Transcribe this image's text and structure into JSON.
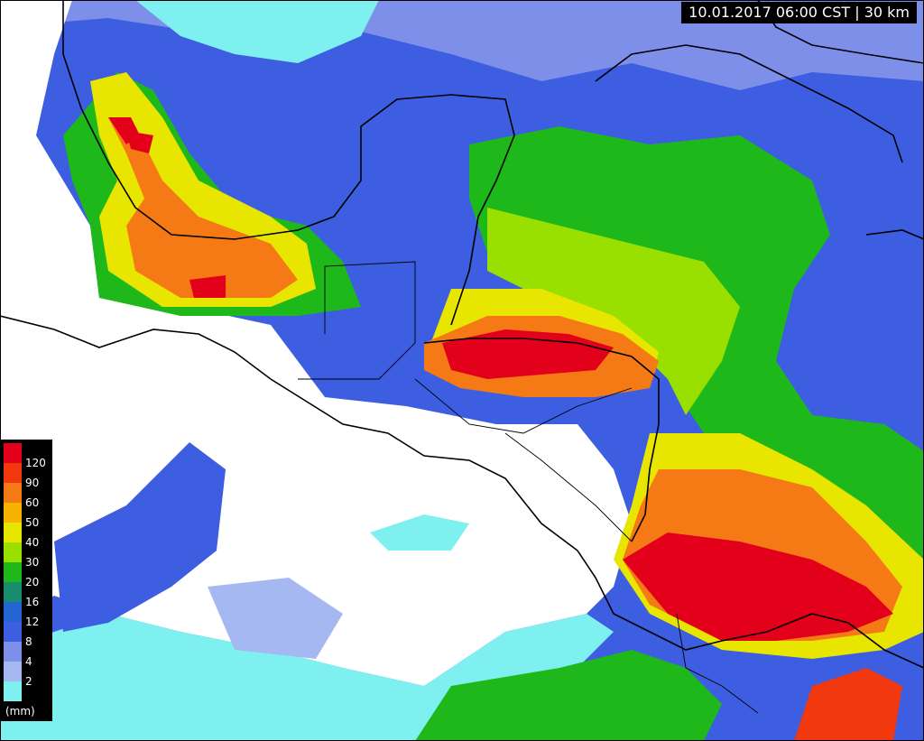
{
  "header": {
    "label": "10.01.2017 06:00 CST | 30 km"
  },
  "legend": {
    "unit": "(mm)",
    "items": [
      {
        "value": "120",
        "color": "#e3001a"
      },
      {
        "value": "90",
        "color": "#f2380f"
      },
      {
        "value": "60",
        "color": "#f57a16"
      },
      {
        "value": "50",
        "color": "#f7b300"
      },
      {
        "value": "40",
        "color": "#e8e600"
      },
      {
        "value": "30",
        "color": "#99e000"
      },
      {
        "value": "20",
        "color": "#1fb81a"
      },
      {
        "value": "16",
        "color": "#1a8c6e"
      },
      {
        "value": "12",
        "color": "#2466d1"
      },
      {
        "value": "8",
        "color": "#3d5ee0"
      },
      {
        "value": "4",
        "color": "#7d8fe8"
      },
      {
        "value": "2",
        "color": "#a6b8f2"
      },
      {
        "value": "",
        "color": "#7ff0f0"
      }
    ]
  },
  "palette": {
    "white": "#ffffff",
    "cyan": "#7ff0f0",
    "lav": "#a6b8f2",
    "blue": "#3d5ee0",
    "dblue": "#2466d1",
    "teal": "#1a8c6e",
    "green": "#1fb81a",
    "lgreen": "#99e000",
    "yellow": "#e8e600",
    "gold": "#f7b300",
    "orange": "#f57a16",
    "redor": "#f2380f",
    "red": "#e3001a"
  }
}
